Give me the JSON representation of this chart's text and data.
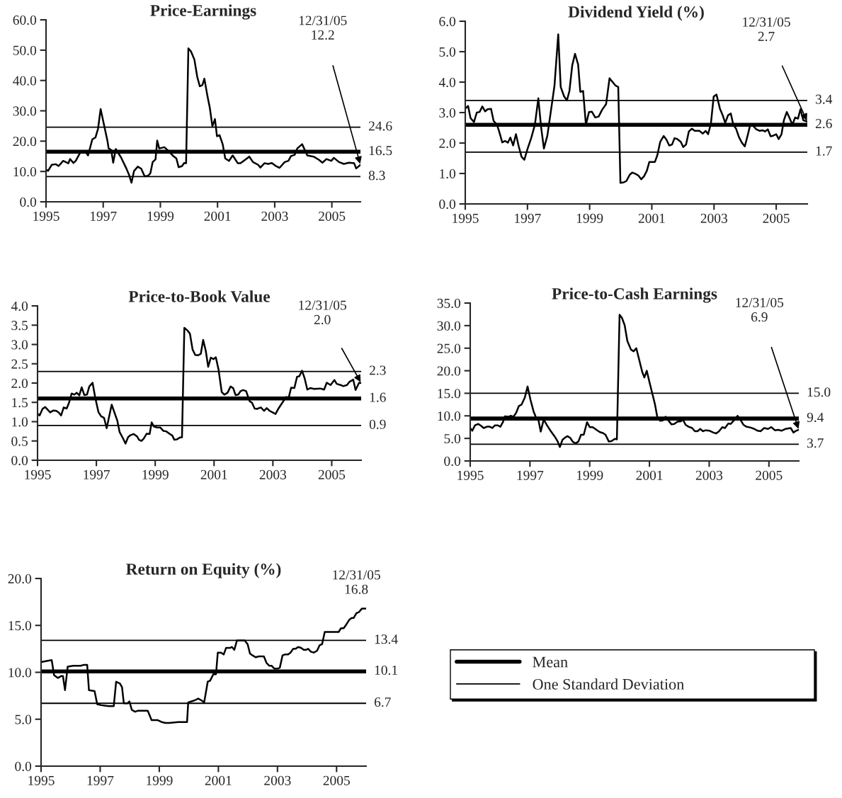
{
  "chart_data": [
    {
      "type": "line",
      "title": "Price-Earnings",
      "xlim": [
        1995,
        2006
      ],
      "xticks": [
        1995,
        1997,
        1999,
        2001,
        2003,
        2005
      ],
      "ylim": [
        0,
        60
      ],
      "yticks": [
        {
          "value": 0,
          "label": "0.0"
        },
        {
          "value": 10,
          "label": "10.0"
        },
        {
          "value": 20,
          "label": "20.0"
        },
        {
          "value": 30,
          "label": "30.0"
        },
        {
          "value": 40,
          "label": "40.0"
        },
        {
          "value": 50,
          "label": "50.0"
        },
        {
          "value": 60,
          "label": "60.0"
        }
      ],
      "x": [
        1995.0,
        1995.07,
        1995.2,
        1995.34,
        1995.44,
        1995.6,
        1995.78,
        1995.84,
        1995.96,
        1996.04,
        1996.2,
        1996.4,
        1996.47,
        1996.62,
        1996.73,
        1996.82,
        1996.91,
        1997.15,
        1997.19,
        1997.28,
        1997.35,
        1997.44,
        1997.62,
        1997.81,
        1997.9,
        1997.99,
        1998.08,
        1998.21,
        1998.33,
        1998.45,
        1998.57,
        1998.65,
        1998.73,
        1998.83,
        1998.89,
        1998.96,
        1999.14,
        1999.27,
        1999.45,
        1999.56,
        1999.64,
        1999.76,
        1999.83,
        1999.9,
        1999.98,
        2000.07,
        2000.19,
        2000.29,
        2000.38,
        2000.47,
        2000.54,
        2000.65,
        2000.73,
        2000.82,
        2000.91,
        2000.98,
        2001.07,
        2001.18,
        2001.27,
        2001.4,
        2001.53,
        2001.71,
        2001.8,
        2001.93,
        2002.11,
        2002.24,
        2002.42,
        2002.5,
        2002.64,
        2002.77,
        2002.9,
        2003.04,
        2003.17,
        2003.35,
        2003.48,
        2003.57,
        2003.7,
        2003.79,
        2003.96,
        2004.14,
        2004.36,
        2004.54,
        2004.67,
        2004.81,
        2004.98,
        2005.07,
        2005.25,
        2005.42,
        2005.6,
        2005.78,
        2005.85,
        2006.0
      ],
      "series": [
        {
          "color": "#000000",
          "values": [
            10.6,
            10.2,
            12.2,
            12.4,
            11.8,
            13.5,
            12.7,
            14.1,
            12.8,
            13.5,
            16.3,
            16.2,
            15.3,
            20.6,
            21.2,
            24.1,
            30.6,
            20.0,
            17.6,
            17.1,
            12.9,
            17.4,
            14.7,
            11.0,
            9.0,
            6.3,
            10.2,
            11.6,
            10.9,
            8.4,
            8.6,
            9.4,
            13.1,
            14.0,
            20.2,
            17.6,
            18.0,
            16.9,
            15.1,
            14.3,
            11.4,
            11.8,
            12.8,
            12.7,
            50.6,
            49.6,
            46.9,
            41.2,
            38.1,
            38.5,
            40.6,
            34.7,
            31.0,
            24.9,
            27.3,
            21.6,
            22.0,
            19.0,
            14.3,
            13.5,
            15.3,
            12.7,
            12.7,
            13.6,
            14.9,
            13.1,
            12.2,
            11.3,
            12.7,
            12.5,
            12.8,
            11.8,
            11.2,
            13.1,
            13.5,
            15.1,
            15.5,
            17.6,
            19.0,
            15.3,
            14.9,
            13.9,
            12.9,
            14.1,
            13.5,
            14.5,
            13.1,
            12.5,
            12.9,
            12.7,
            11.0,
            12.2
          ]
        }
      ],
      "ref_lines": [
        {
          "axis": "y",
          "value": 24.6,
          "label": "24.6"
        },
        {
          "axis": "y",
          "value": 16.5,
          "label": "16.5"
        },
        {
          "axis": "y",
          "value": 8.3,
          "label": "8.3"
        }
      ],
      "annotations": [
        "12/31/05\n12.2"
      ]
    },
    {
      "type": "line",
      "title": "Dividend Yield (%)",
      "xlim": [
        1995,
        2006
      ],
      "xticks": [
        1995,
        1997,
        1999,
        2001,
        2003,
        2005
      ],
      "ylim": [
        0,
        6
      ],
      "yticks": [
        {
          "value": 0,
          "label": "0.0"
        },
        {
          "value": 1,
          "label": "1.0"
        },
        {
          "value": 2,
          "label": "2.0"
        },
        {
          "value": 3,
          "label": "3.0"
        },
        {
          "value": 4,
          "label": "4.0"
        },
        {
          "value": 5,
          "label": "5.0"
        },
        {
          "value": 6,
          "label": "6.0"
        }
      ],
      "x": [
        1995.0,
        1995.09,
        1995.17,
        1995.28,
        1995.37,
        1995.46,
        1995.55,
        1995.64,
        1995.72,
        1995.83,
        1995.91,
        1996.02,
        1996.09,
        1996.19,
        1996.28,
        1996.37,
        1996.45,
        1996.54,
        1996.63,
        1996.72,
        1996.81,
        1996.9,
        1997.0,
        1997.12,
        1997.24,
        1997.35,
        1997.44,
        1997.53,
        1997.64,
        1997.74,
        1997.87,
        1997.99,
        1998.07,
        1998.18,
        1998.27,
        1998.35,
        1998.44,
        1998.53,
        1998.63,
        1998.7,
        1998.79,
        1998.88,
        1998.98,
        1999.07,
        1999.18,
        1999.29,
        1999.4,
        1999.53,
        1999.64,
        1999.75,
        1999.83,
        1999.92,
        1999.99,
        2000.1,
        2000.18,
        2000.29,
        2000.37,
        2000.49,
        2000.57,
        2000.66,
        2000.75,
        2000.84,
        2000.92,
        2001.01,
        2001.1,
        2001.18,
        2001.27,
        2001.38,
        2001.47,
        2001.56,
        2001.65,
        2001.73,
        2001.82,
        2001.93,
        2002.01,
        2002.1,
        2002.19,
        2002.29,
        2002.38,
        2002.53,
        2002.64,
        2002.73,
        2002.81,
        2002.9,
        2002.99,
        2003.08,
        2003.19,
        2003.28,
        2003.36,
        2003.45,
        2003.54,
        2003.62,
        2003.71,
        2003.8,
        2003.89,
        2003.99,
        2004.08,
        2004.17,
        2004.28,
        2004.36,
        2004.47,
        2004.56,
        2004.64,
        2004.73,
        2004.82,
        2004.9,
        2005.0,
        2005.08,
        2005.17,
        2005.25,
        2005.34,
        2005.43,
        2005.52,
        2005.61,
        2005.7,
        2005.78,
        2005.87,
        2006.0
      ],
      "series": [
        {
          "color": "#000000",
          "values": [
            3.13,
            3.22,
            2.82,
            2.69,
            3.0,
            3.02,
            3.2,
            3.04,
            3.11,
            3.12,
            2.73,
            2.6,
            2.38,
            2.02,
            2.07,
            2.01,
            2.18,
            1.92,
            2.29,
            1.89,
            1.55,
            1.45,
            1.8,
            2.16,
            2.6,
            3.47,
            2.51,
            1.82,
            2.24,
            2.95,
            3.89,
            5.57,
            3.84,
            3.53,
            3.4,
            3.71,
            4.55,
            4.93,
            4.58,
            3.68,
            3.71,
            2.6,
            3.02,
            3.03,
            2.84,
            2.87,
            3.09,
            3.28,
            4.13,
            3.99,
            3.89,
            3.84,
            0.69,
            0.71,
            0.75,
            0.96,
            1.03,
            0.98,
            0.93,
            0.81,
            0.91,
            1.09,
            1.38,
            1.38,
            1.38,
            1.61,
            2.04,
            2.23,
            2.11,
            1.92,
            1.95,
            2.16,
            2.13,
            2.04,
            1.87,
            1.95,
            2.38,
            2.47,
            2.4,
            2.4,
            2.31,
            2.4,
            2.29,
            2.64,
            3.53,
            3.59,
            3.13,
            2.91,
            2.66,
            2.91,
            2.97,
            2.6,
            2.47,
            2.2,
            2.02,
            1.89,
            2.24,
            2.62,
            2.54,
            2.45,
            2.4,
            2.42,
            2.38,
            2.45,
            2.22,
            2.24,
            2.29,
            2.13,
            2.29,
            2.76,
            3.02,
            2.82,
            2.6,
            2.84,
            2.8,
            3.11,
            2.75,
            2.7
          ]
        }
      ],
      "ref_lines": [
        {
          "axis": "y",
          "value": 3.4,
          "label": "3.4"
        },
        {
          "axis": "y",
          "value": 2.6,
          "label": "2.6"
        },
        {
          "axis": "y",
          "value": 1.7,
          "label": "1.7"
        }
      ],
      "annotations": [
        "12/31/05\n2.7"
      ]
    },
    {
      "type": "line",
      "title": "Price-to-Book Value",
      "xlim": [
        1995,
        2006
      ],
      "xticks": [
        1995,
        1997,
        1999,
        2001,
        2003,
        2005
      ],
      "ylim": [
        0,
        4
      ],
      "yticks": [
        {
          "value": 0,
          "label": "0.0"
        },
        {
          "value": 0.5,
          "label": "0.5"
        },
        {
          "value": 1,
          "label": "1.0"
        },
        {
          "value": 1.5,
          "label": "1.5"
        },
        {
          "value": 2,
          "label": "2.0"
        },
        {
          "value": 2.5,
          "label": "2.5"
        },
        {
          "value": 3,
          "label": "3.0"
        },
        {
          "value": 3.5,
          "label": "3.5"
        },
        {
          "value": 4,
          "label": "4.0"
        }
      ],
      "x": [
        1995.0,
        1995.07,
        1995.17,
        1995.26,
        1995.43,
        1995.54,
        1995.64,
        1995.73,
        1995.8,
        1995.89,
        1995.99,
        1996.07,
        1996.16,
        1996.25,
        1996.33,
        1996.42,
        1996.5,
        1996.59,
        1996.68,
        1996.76,
        1996.87,
        1996.96,
        1997.07,
        1997.16,
        1997.26,
        1997.35,
        1997.52,
        1997.71,
        1997.79,
        1997.91,
        1997.99,
        1998.08,
        1998.16,
        1998.27,
        1998.38,
        1998.45,
        1998.53,
        1998.61,
        1998.71,
        1998.81,
        1998.88,
        1998.96,
        1999.07,
        1999.17,
        1999.28,
        1999.37,
        1999.5,
        1999.58,
        1999.65,
        1999.74,
        1999.84,
        1999.91,
        1999.99,
        2000.1,
        2000.18,
        2000.27,
        2000.36,
        2000.46,
        2000.55,
        2000.63,
        2000.72,
        2000.8,
        2000.89,
        2000.98,
        2001.06,
        2001.15,
        2001.26,
        2001.35,
        2001.46,
        2001.56,
        2001.65,
        2001.73,
        2001.82,
        2001.9,
        2001.99,
        2002.09,
        2002.21,
        2002.29,
        2002.38,
        2002.46,
        2002.59,
        2002.7,
        2002.79,
        2002.89,
        2003.01,
        2003.09,
        2003.19,
        2003.32,
        2003.45,
        2003.54,
        2003.62,
        2003.73,
        2003.82,
        2003.9,
        2003.99,
        2004.08,
        2004.17,
        2004.27,
        2004.4,
        2004.61,
        2004.74,
        2004.83,
        2004.96,
        2005.09,
        2005.17,
        2005.3,
        2005.39,
        2005.52,
        2005.6,
        2005.73,
        2005.81,
        2005.93,
        2006.0
      ],
      "series": [
        {
          "color": "#000000",
          "values": [
            1.21,
            1.16,
            1.33,
            1.38,
            1.24,
            1.29,
            1.28,
            1.23,
            1.16,
            1.37,
            1.34,
            1.49,
            1.73,
            1.7,
            1.75,
            1.68,
            1.89,
            1.69,
            1.7,
            1.91,
            2.01,
            1.63,
            1.25,
            1.14,
            1.1,
            0.83,
            1.44,
            1.03,
            0.73,
            0.56,
            0.43,
            0.6,
            0.65,
            0.68,
            0.62,
            0.53,
            0.5,
            0.56,
            0.69,
            0.68,
            0.98,
            0.87,
            0.85,
            0.85,
            0.76,
            0.75,
            0.68,
            0.64,
            0.53,
            0.54,
            0.59,
            0.59,
            3.43,
            3.36,
            3.28,
            2.87,
            2.73,
            2.72,
            2.76,
            3.12,
            2.83,
            2.42,
            2.66,
            2.62,
            2.67,
            2.36,
            1.77,
            1.7,
            1.75,
            1.91,
            1.87,
            1.69,
            1.7,
            1.79,
            1.82,
            1.79,
            1.53,
            1.49,
            1.34,
            1.33,
            1.37,
            1.28,
            1.35,
            1.28,
            1.23,
            1.2,
            1.34,
            1.49,
            1.64,
            1.63,
            1.88,
            1.87,
            2.16,
            2.18,
            2.32,
            2.12,
            1.83,
            1.87,
            1.85,
            1.86,
            1.83,
            2.01,
            1.95,
            2.08,
            1.98,
            1.95,
            1.92,
            1.95,
            2.03,
            2.09,
            1.82,
            2.01,
            2.0
          ]
        }
      ],
      "ref_lines": [
        {
          "axis": "y",
          "value": 2.3,
          "label": "2.3"
        },
        {
          "axis": "y",
          "value": 1.6,
          "label": "1.6"
        },
        {
          "axis": "y",
          "value": 0.9,
          "label": "0.9"
        }
      ],
      "annotations": [
        "12/31/05\n2.0"
      ]
    },
    {
      "type": "line",
      "title": "Price-to-Cash Earnings",
      "xlim": [
        1995,
        2006
      ],
      "xticks": [
        1995,
        1997,
        1999,
        2001,
        2003,
        2005
      ],
      "ylim": [
        0,
        35
      ],
      "yticks": [
        {
          "value": 0,
          "label": "0.0"
        },
        {
          "value": 5,
          "label": "5.0"
        },
        {
          "value": 10,
          "label": "10.0"
        },
        {
          "value": 15,
          "label": "15.0"
        },
        {
          "value": 20,
          "label": "20.0"
        },
        {
          "value": 25,
          "label": "25.0"
        },
        {
          "value": 30,
          "label": "30.0"
        },
        {
          "value": 35,
          "label": "35.0"
        }
      ],
      "x": [
        1995.0,
        1995.07,
        1995.16,
        1995.27,
        1995.36,
        1995.45,
        1995.56,
        1995.65,
        1995.74,
        1995.83,
        1995.92,
        1996.01,
        1996.1,
        1996.16,
        1996.28,
        1996.36,
        1996.45,
        1996.54,
        1996.63,
        1996.72,
        1996.83,
        1996.92,
        1997.02,
        1997.12,
        1997.21,
        1997.28,
        1997.36,
        1997.46,
        1997.57,
        1997.7,
        1997.84,
        1997.93,
        1998.0,
        1998.09,
        1998.18,
        1998.26,
        1998.35,
        1998.44,
        1998.53,
        1998.62,
        1998.71,
        1998.8,
        1998.91,
        1999.0,
        1999.1,
        1999.25,
        1999.34,
        1999.44,
        1999.53,
        1999.64,
        1999.73,
        1999.84,
        1999.91,
        2000.0,
        2000.08,
        2000.17,
        2000.26,
        2000.38,
        2000.47,
        2000.56,
        2000.65,
        2000.76,
        2000.83,
        2000.91,
        2001.0,
        2001.09,
        2001.18,
        2001.27,
        2001.36,
        2001.45,
        2001.54,
        2001.63,
        2001.74,
        2001.83,
        2001.94,
        2002.05,
        2002.12,
        2002.21,
        2002.31,
        2002.43,
        2002.52,
        2002.61,
        2002.7,
        2002.79,
        2002.88,
        2003.01,
        2003.14,
        2003.23,
        2003.32,
        2003.44,
        2003.53,
        2003.64,
        2003.72,
        2003.83,
        2003.95,
        2004.04,
        2004.15,
        2004.24,
        2004.39,
        2004.51,
        2004.62,
        2004.72,
        2004.84,
        2004.97,
        2005.08,
        2005.2,
        2005.31,
        2005.42,
        2005.55,
        2005.73,
        2005.82,
        2005.91,
        2006.0
      ],
      "series": [
        {
          "color": "#000000",
          "values": [
            7.3,
            6.7,
            7.9,
            8.2,
            7.8,
            7.3,
            7.6,
            7.6,
            7.3,
            7.9,
            7.9,
            7.6,
            8.7,
            9.9,
            9.8,
            10.0,
            9.8,
            10.7,
            12.2,
            12.5,
            14.1,
            16.5,
            13.5,
            11.0,
            9.5,
            9.2,
            6.5,
            9.2,
            7.9,
            6.6,
            5.3,
            4.3,
            3.1,
            4.7,
            5.2,
            5.5,
            5.1,
            4.2,
            3.9,
            4.3,
            5.8,
            5.8,
            8.6,
            7.5,
            7.5,
            6.8,
            6.4,
            6.2,
            5.8,
            4.3,
            4.4,
            4.9,
            4.8,
            32.4,
            31.7,
            30.1,
            26.6,
            24.7,
            24.3,
            25.0,
            22.6,
            19.7,
            18.5,
            20.0,
            17.5,
            15.1,
            12.7,
            9.5,
            8.9,
            9.0,
            9.8,
            9.0,
            8.1,
            8.2,
            8.7,
            8.8,
            9.2,
            8.0,
            7.6,
            7.3,
            6.6,
            6.6,
            7.1,
            6.6,
            6.8,
            6.7,
            6.3,
            6.1,
            6.5,
            7.5,
            7.3,
            8.3,
            8.2,
            9.0,
            10.0,
            9.2,
            8.0,
            7.6,
            7.4,
            7.1,
            6.7,
            6.6,
            7.3,
            7.1,
            7.5,
            6.8,
            6.9,
            6.7,
            7.1,
            7.3,
            6.3,
            6.7,
            6.9
          ]
        }
      ],
      "ref_lines": [
        {
          "axis": "y",
          "value": 15.0,
          "label": "15.0"
        },
        {
          "axis": "y",
          "value": 9.4,
          "label": "9.4"
        },
        {
          "axis": "y",
          "value": 3.7,
          "label": "3.7"
        }
      ],
      "annotations": [
        "12/31/05\n6.9"
      ]
    },
    {
      "type": "line",
      "title": "Return on Equity (%)",
      "xlim": [
        1995,
        2006
      ],
      "xticks": [
        1995,
        1997,
        1999,
        2001,
        2003,
        2005
      ],
      "ylim": [
        0,
        20
      ],
      "yticks": [
        {
          "value": 0,
          "label": "0.0"
        },
        {
          "value": 5,
          "label": "5.0"
        },
        {
          "value": 10,
          "label": "10.0"
        },
        {
          "value": 15,
          "label": "15.0"
        },
        {
          "value": 20,
          "label": "20.0"
        }
      ],
      "x": [
        1995.0,
        1995.19,
        1995.36,
        1995.44,
        1995.57,
        1995.68,
        1995.74,
        1995.81,
        1995.9,
        1996.09,
        1996.34,
        1996.45,
        1996.56,
        1996.62,
        1996.81,
        1996.9,
        1997.03,
        1997.28,
        1997.46,
        1997.54,
        1997.67,
        1997.74,
        1997.8,
        1997.93,
        1997.99,
        1998.07,
        1998.18,
        1998.27,
        1998.52,
        1998.61,
        1998.74,
        1998.95,
        1999.08,
        1999.21,
        1999.34,
        1999.64,
        1999.94,
        1999.98,
        2000.19,
        2000.32,
        2000.43,
        2000.52,
        2000.64,
        2000.72,
        2000.83,
        2000.92,
        2000.98,
        2001.09,
        2001.18,
        2001.26,
        2001.39,
        2001.46,
        2001.54,
        2001.63,
        2001.82,
        2001.89,
        2001.99,
        2002.07,
        2002.16,
        2002.26,
        2002.37,
        2002.54,
        2002.63,
        2002.72,
        2002.8,
        2002.89,
        2003.02,
        2003.08,
        2003.17,
        2003.25,
        2003.36,
        2003.44,
        2003.53,
        2003.61,
        2003.7,
        2003.8,
        2003.89,
        2003.97,
        2004.04,
        2004.13,
        2004.23,
        2004.34,
        2004.43,
        2004.51,
        2004.6,
        2004.73,
        2004.94,
        2005.07,
        2005.15,
        2005.24,
        2005.33,
        2005.43,
        2005.51,
        2005.58,
        2005.67,
        2005.75,
        2005.86,
        2006.0
      ],
      "series": [
        {
          "color": "#000000",
          "values": [
            11.1,
            11.2,
            11.3,
            9.7,
            9.4,
            9.6,
            9.6,
            8.1,
            10.6,
            10.7,
            10.7,
            10.8,
            10.8,
            8.1,
            8.0,
            6.6,
            6.5,
            6.4,
            6.4,
            9.0,
            8.8,
            8.4,
            6.7,
            6.7,
            6.9,
            6.0,
            5.8,
            5.9,
            5.9,
            5.9,
            4.9,
            4.9,
            4.7,
            4.6,
            4.6,
            4.7,
            4.7,
            6.8,
            7.0,
            7.2,
            7.0,
            6.8,
            9.0,
            9.1,
            9.8,
            9.8,
            12.1,
            12.1,
            11.9,
            12.6,
            12.6,
            12.7,
            12.4,
            13.4,
            13.4,
            13.4,
            13.0,
            12.0,
            11.8,
            11.6,
            11.7,
            11.7,
            11.0,
            10.7,
            10.7,
            10.4,
            10.4,
            10.5,
            11.8,
            11.9,
            11.9,
            12.1,
            12.5,
            12.5,
            12.7,
            12.6,
            12.4,
            12.4,
            12.5,
            12.2,
            12.1,
            12.3,
            12.9,
            13.0,
            14.3,
            14.3,
            14.3,
            14.3,
            14.7,
            14.7,
            15.1,
            15.6,
            15.8,
            15.8,
            16.3,
            16.4,
            16.8,
            16.8
          ]
        }
      ],
      "ref_lines": [
        {
          "axis": "y",
          "value": 13.4,
          "label": "13.4"
        },
        {
          "axis": "y",
          "value": 10.1,
          "label": "10.1"
        },
        {
          "axis": "y",
          "value": 6.7,
          "label": "6.7"
        }
      ],
      "annotations": [
        "12/31/05\n16.8"
      ]
    },
    {
      "type": "other",
      "series": [
        {
          "name": "Mean",
          "color": "#000000"
        },
        {
          "name": "One Standard Deviation",
          "color": "#000000"
        }
      ]
    }
  ]
}
